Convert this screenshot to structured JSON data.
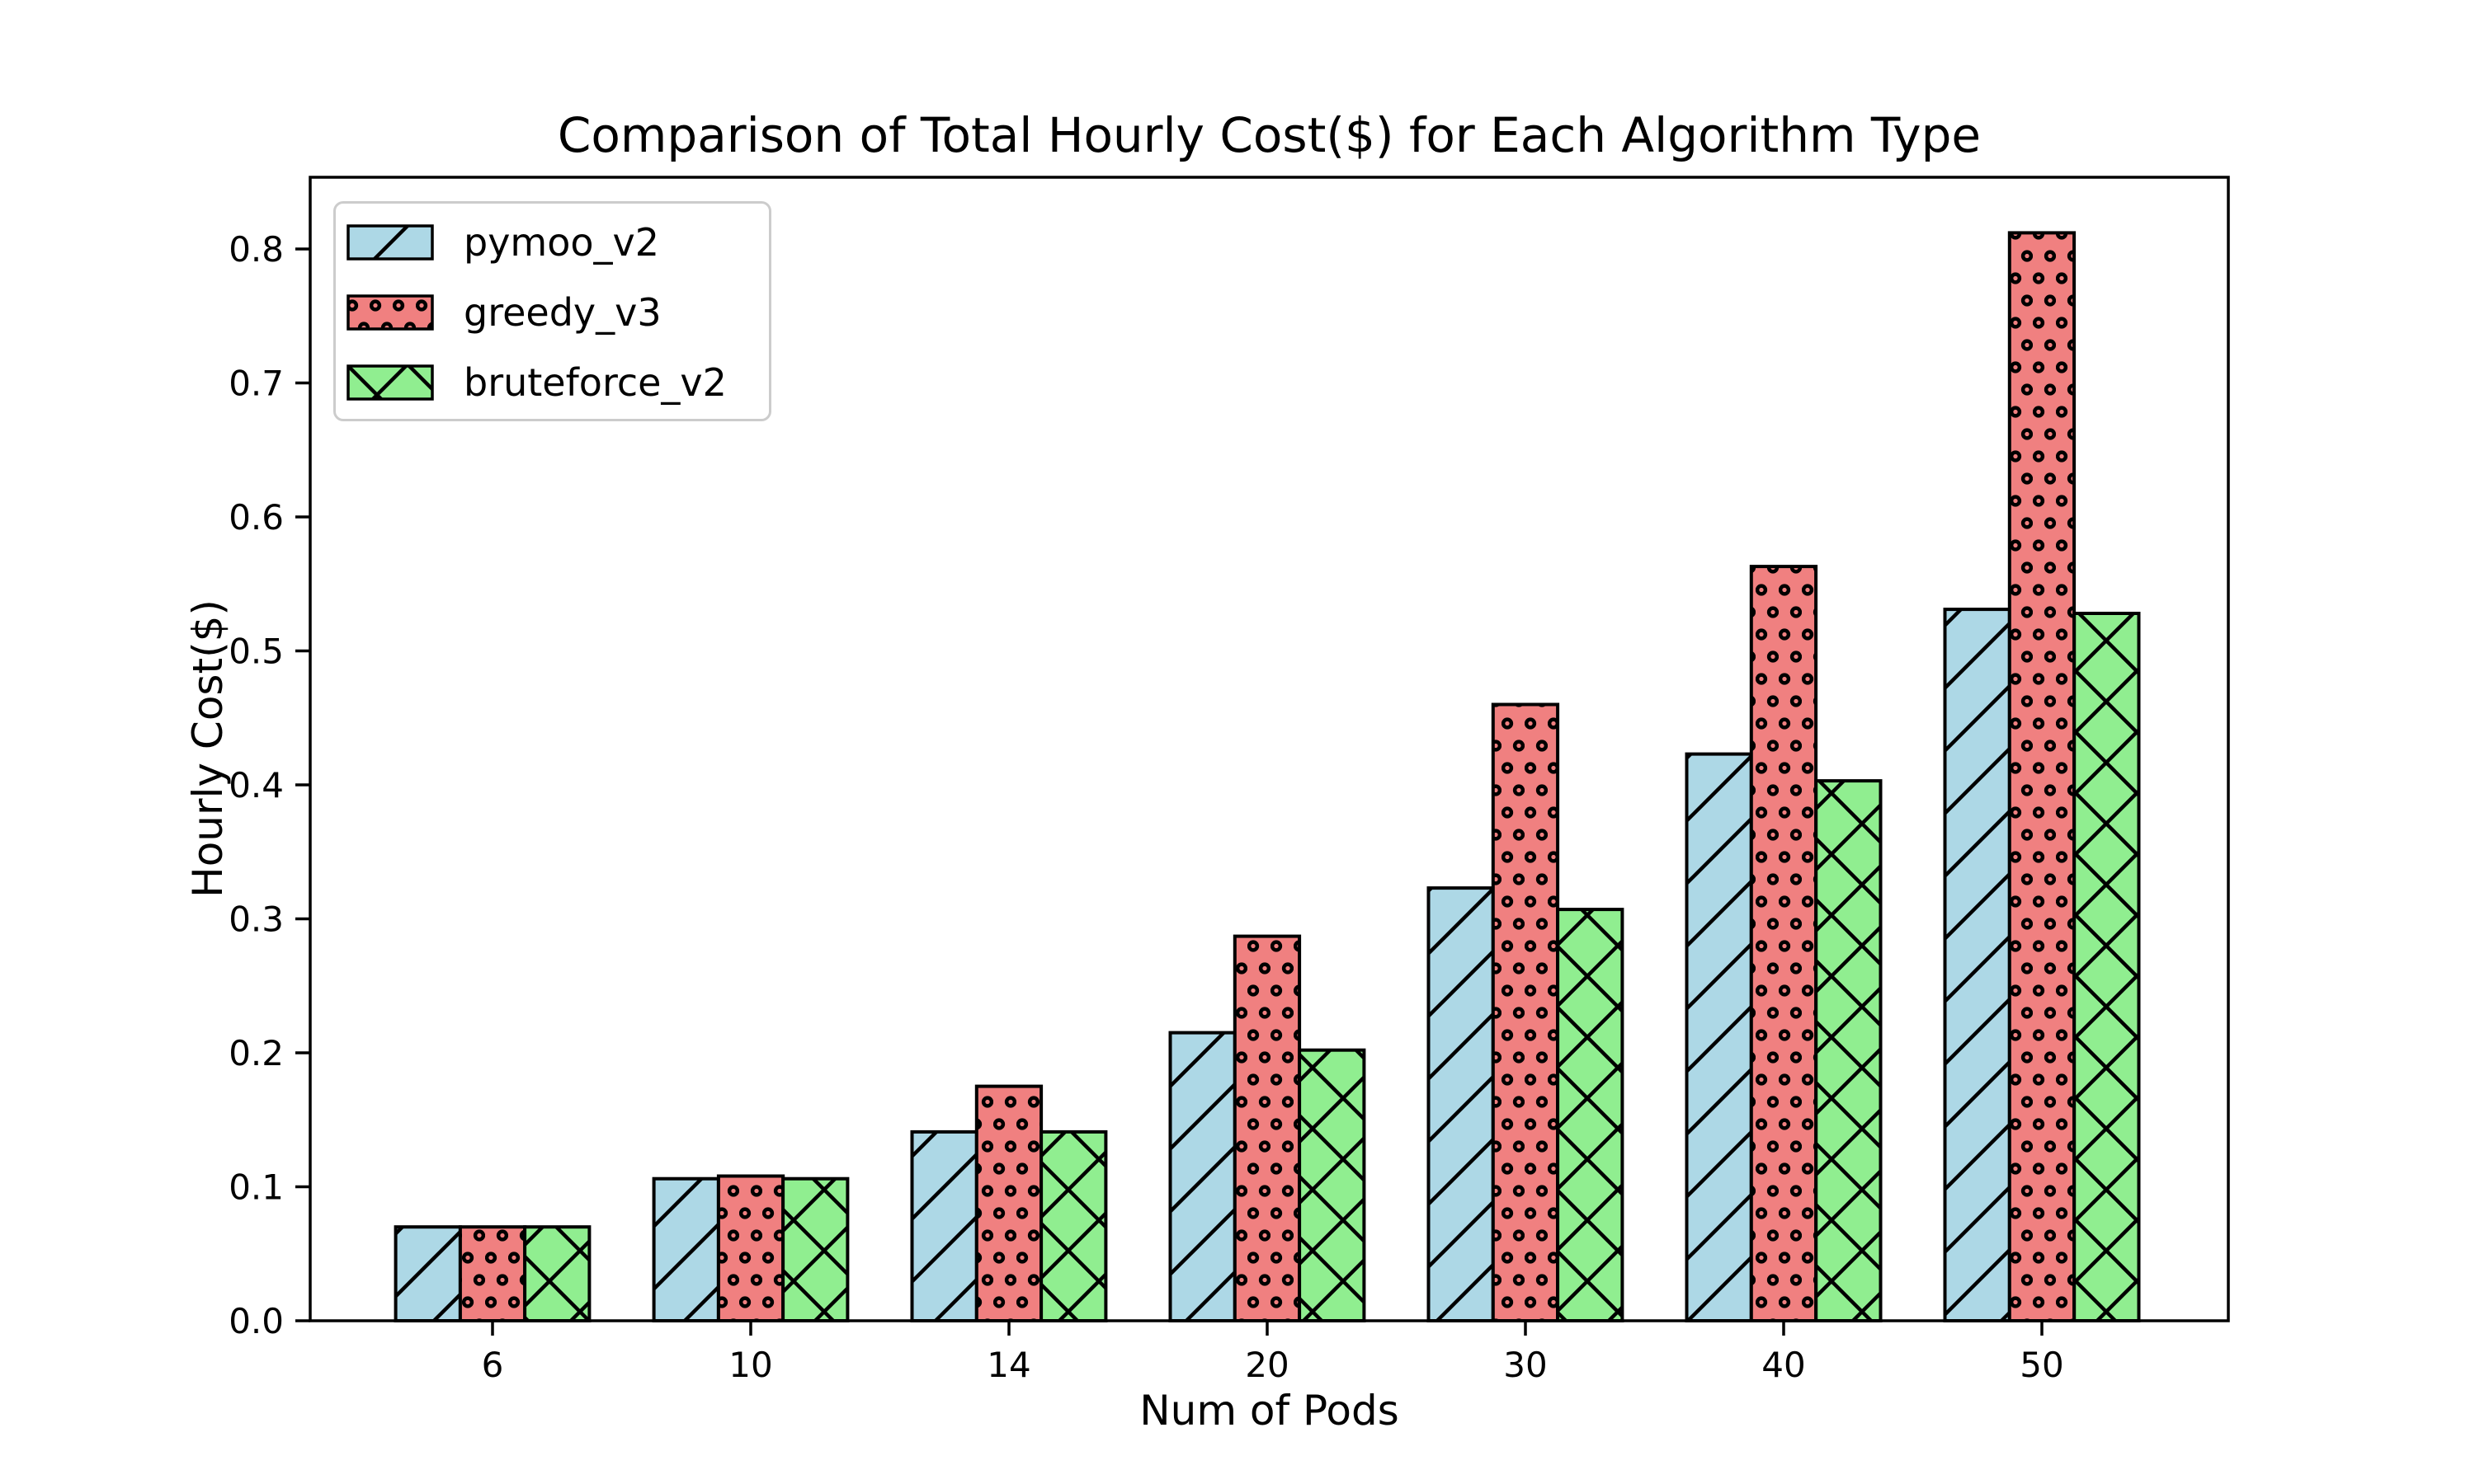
{
  "chart_data": {
    "type": "bar",
    "title": "Comparison of Total Hourly Cost($) for Each Algorithm Type",
    "xlabel": "Num of Pods",
    "ylabel": "Hourly Cost($)",
    "categories": [
      "6",
      "10",
      "14",
      "20",
      "30",
      "40",
      "50"
    ],
    "series": [
      {
        "name": "pymoo_v2",
        "color": "#ADD8E6",
        "hatch": "diagonal",
        "values": [
          0.07,
          0.106,
          0.141,
          0.215,
          0.323,
          0.423,
          0.531
        ]
      },
      {
        "name": "greedy_v3",
        "color": "#F08080",
        "hatch": "circles",
        "values": [
          0.07,
          0.108,
          0.175,
          0.287,
          0.46,
          0.563,
          0.812
        ]
      },
      {
        "name": "bruteforce_v2",
        "color": "#90EE90",
        "hatch": "crosshatch",
        "values": [
          0.07,
          0.106,
          0.141,
          0.202,
          0.307,
          0.403,
          0.528
        ]
      }
    ],
    "yticks": [
      "0.0",
      "0.1",
      "0.2",
      "0.3",
      "0.4",
      "0.5",
      "0.6",
      "0.7",
      "0.8"
    ],
    "ylim": [
      0,
      0.8535
    ],
    "edge_color": "#000000",
    "legend_border_color": "#cccccc",
    "legend_position": "upper-left",
    "grid": false
  }
}
